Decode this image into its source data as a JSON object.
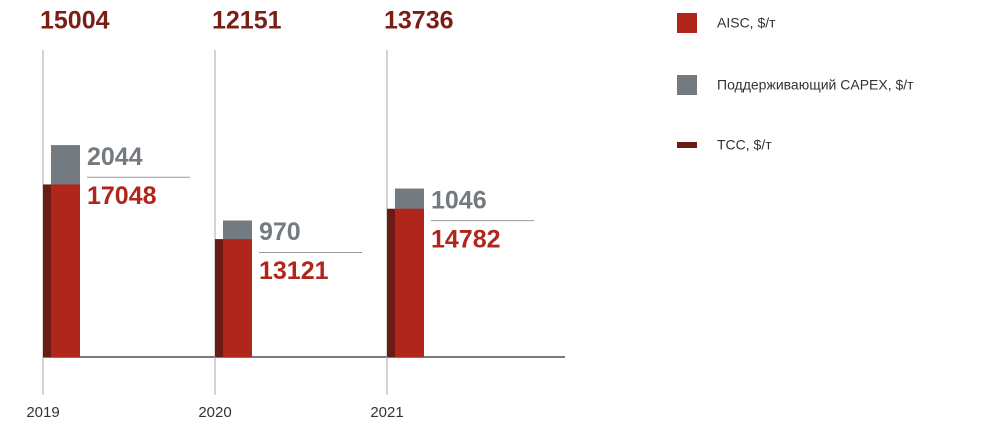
{
  "chart_data": {
    "type": "bar",
    "categories": [
      "2019",
      "2020",
      "2021"
    ],
    "series": [
      {
        "name": "AISC, $/т",
        "color": "#b0261c",
        "values": [
          17048,
          13121,
          14782
        ]
      },
      {
        "name": "Поддерживающий CAPEX, $/т",
        "color": "#737b80",
        "values": [
          2044,
          970,
          1046
        ]
      },
      {
        "name": "TCC, $/т",
        "color": "#6b1a14",
        "values": [
          15004,
          12151,
          13736
        ]
      }
    ],
    "ylim": [
      6000,
      18000
    ]
  }
}
